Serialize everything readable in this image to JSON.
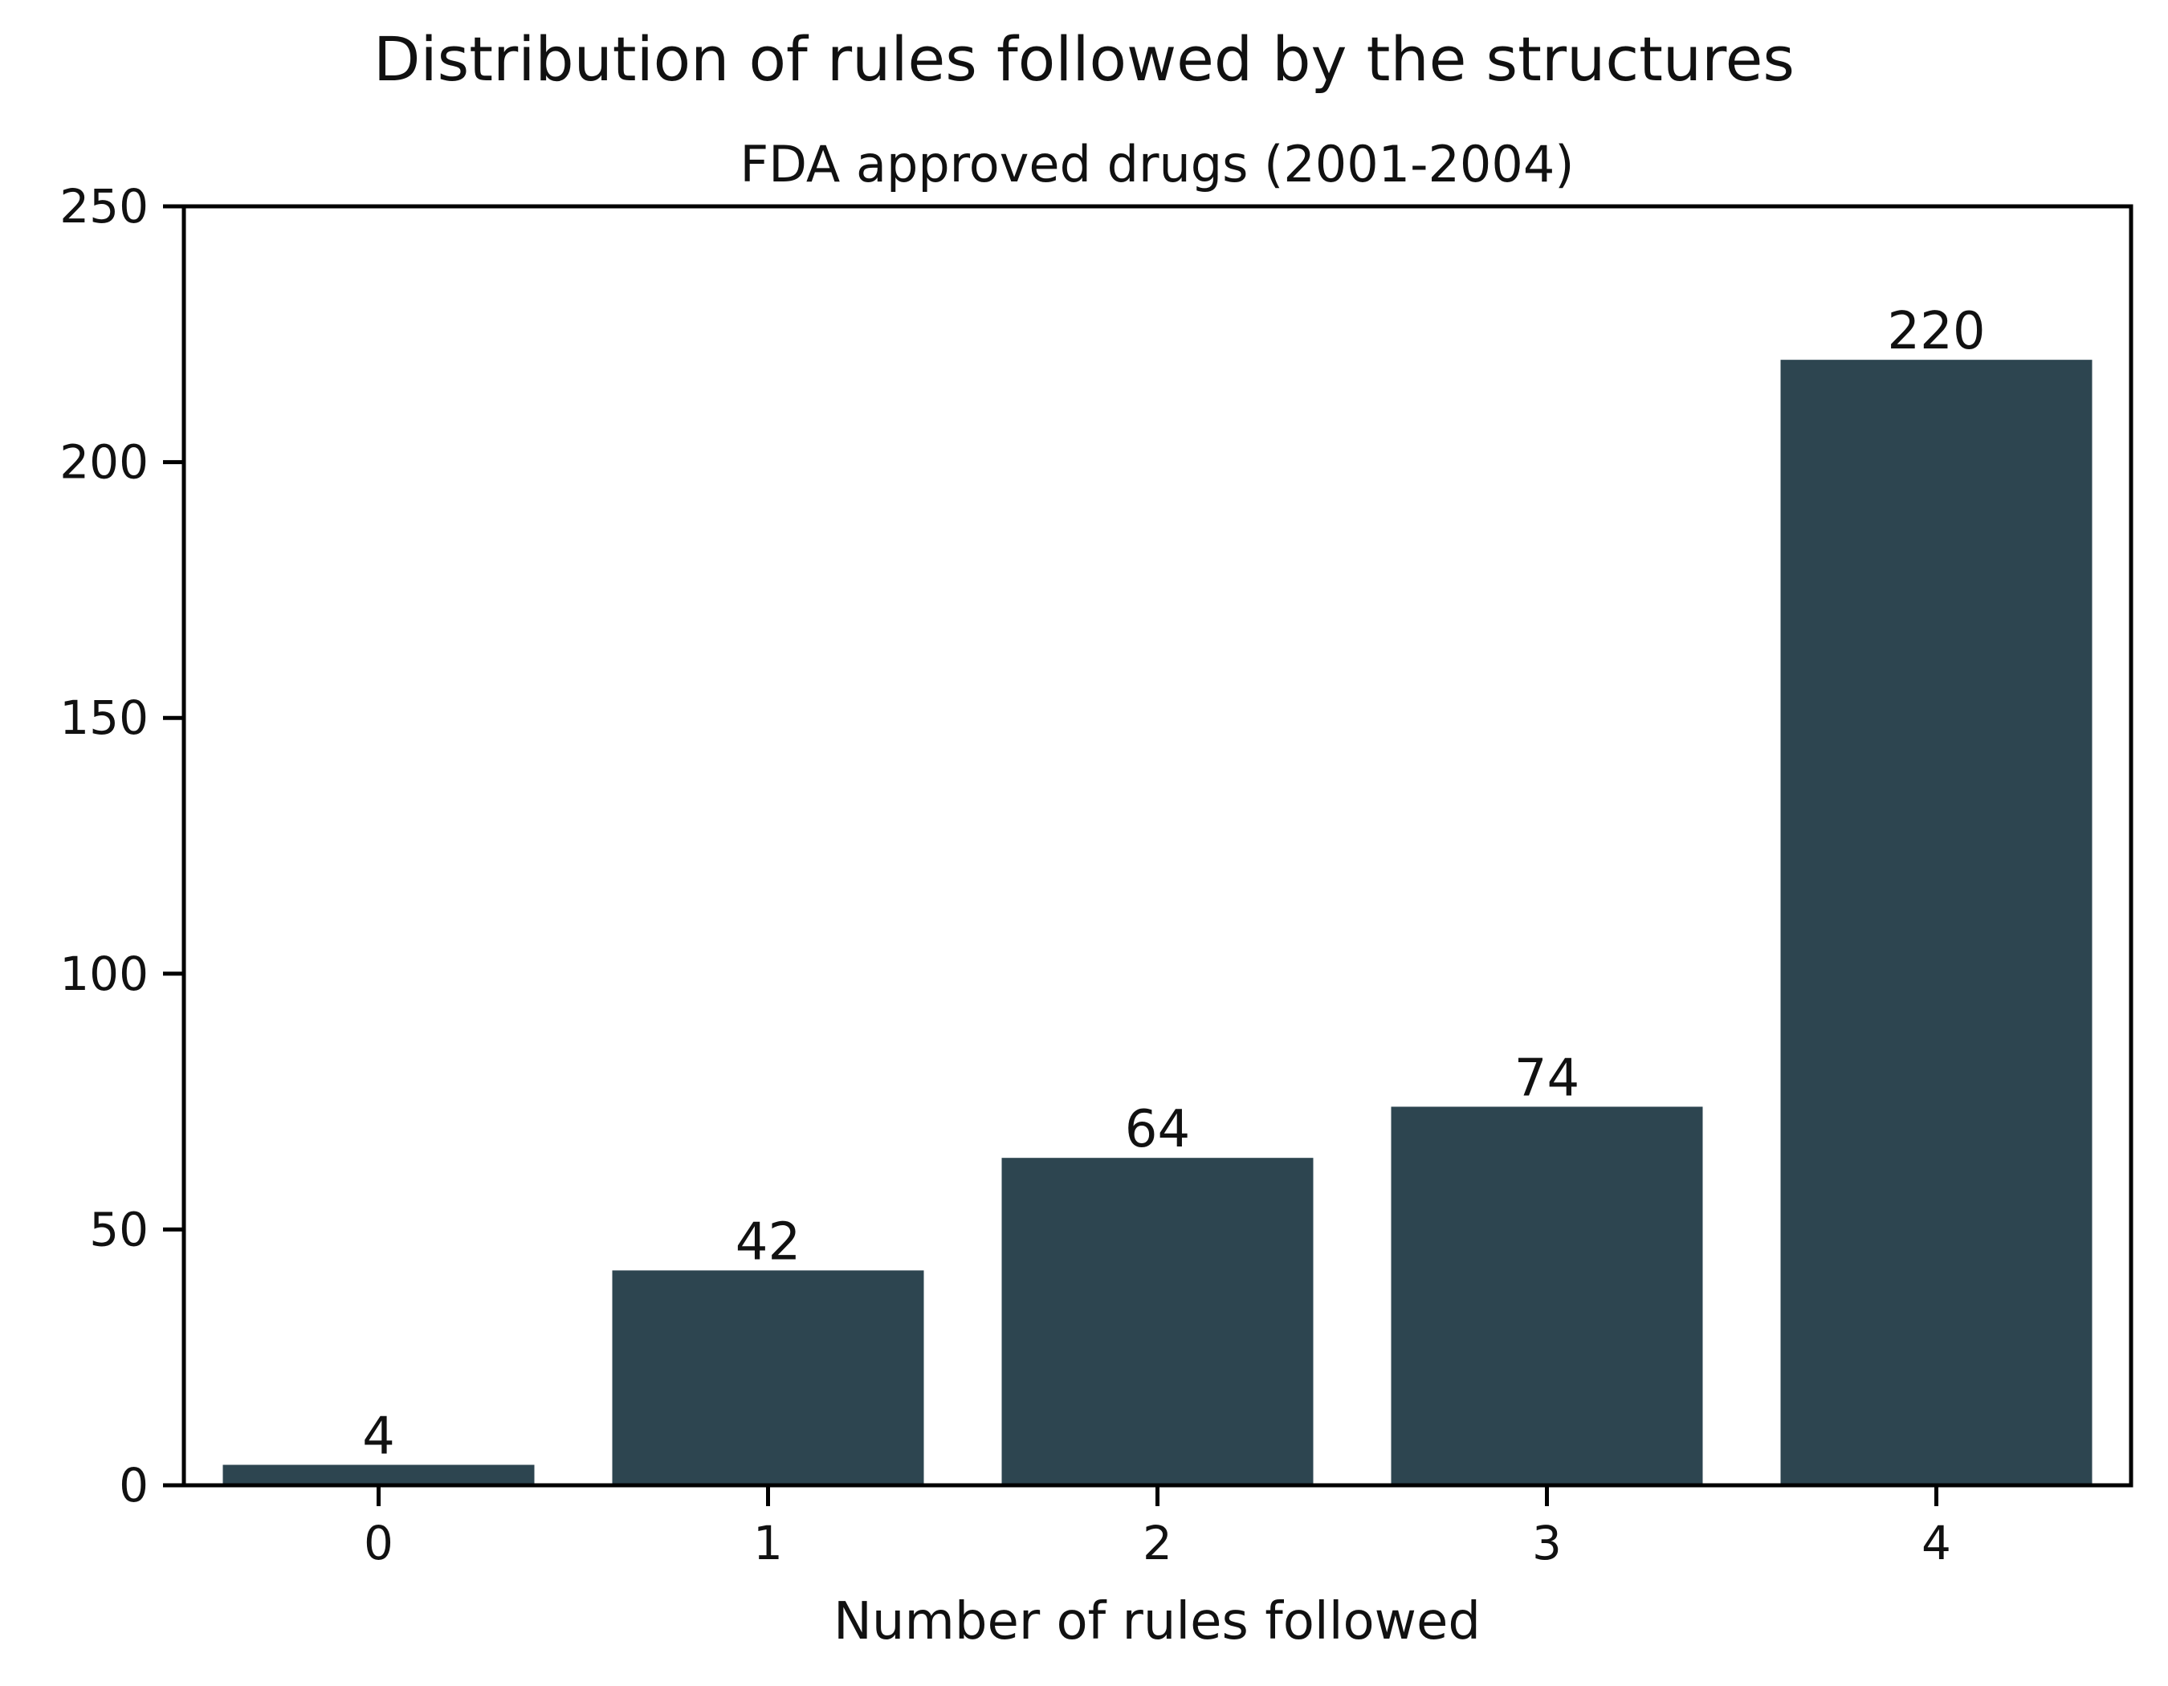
{
  "chart_data": {
    "type": "bar",
    "suptitle": "Distribution of rules followed by the structures",
    "title": "FDA approved drugs (2001-2004)",
    "xlabel": "Number of rules followed",
    "ylabel": "",
    "categories": [
      "0",
      "1",
      "2",
      "3",
      "4"
    ],
    "values": [
      4,
      42,
      64,
      74,
      220
    ],
    "ylim": [
      0,
      250
    ],
    "yticks": [
      0,
      50,
      100,
      150,
      200,
      250
    ],
    "bar_color": "#2d4550",
    "grid": false,
    "legend": "none"
  }
}
